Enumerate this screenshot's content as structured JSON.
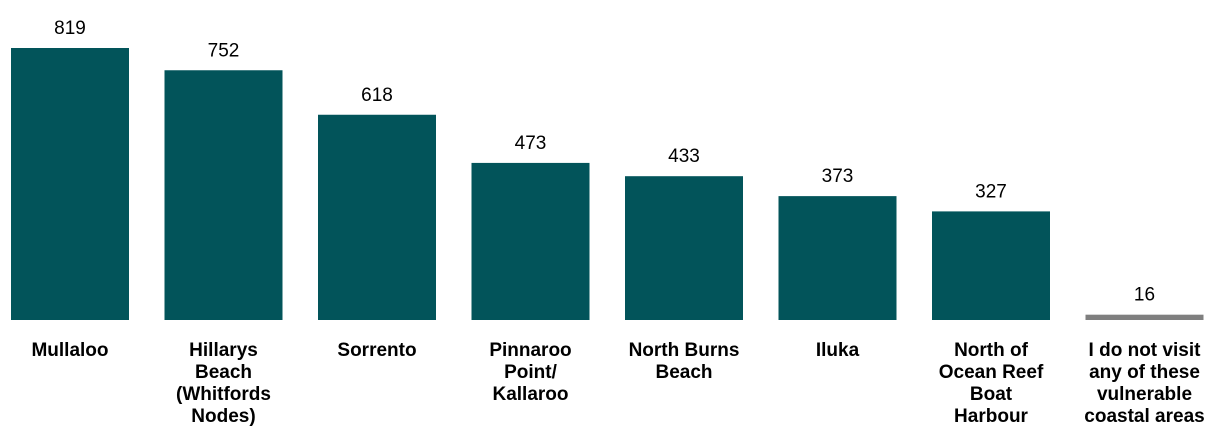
{
  "chart_data": {
    "type": "bar",
    "categories": [
      "Mullaloo",
      "Hillarys\nBeach\n(Whitfords\nNodes)",
      "Sorrento",
      "Pinnaroo\nPoint/\nKallaroo",
      "North Burns\nBeach",
      "Iluka",
      "North of\nOcean Reef\nBoat\nHarbour",
      "I do not visit\nany of these\nvulnerable\ncoastal areas"
    ],
    "values": [
      819,
      752,
      618,
      473,
      433,
      373,
      327,
      16
    ],
    "data_labels": [
      "819",
      "752",
      "618",
      "473",
      "433",
      "373",
      "327",
      "16"
    ],
    "bar_colors": [
      "#02545A",
      "#02545A",
      "#02545A",
      "#02545A",
      "#02545A",
      "#02545A",
      "#02545A",
      "#7F7F7F"
    ],
    "title": "",
    "xlabel": "",
    "ylabel": "",
    "ylim": [
      0,
      819
    ],
    "grid": false,
    "legend": "none"
  }
}
